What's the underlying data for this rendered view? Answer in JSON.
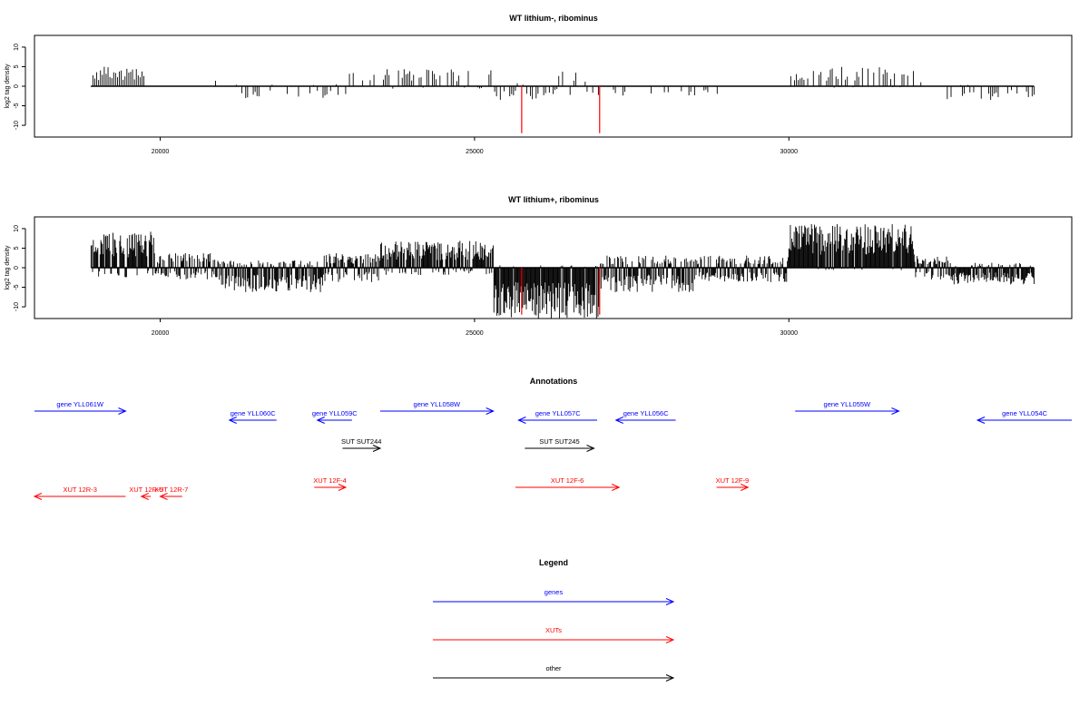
{
  "chart_data": [
    {
      "type": "bar",
      "title": "WT lithium-, ribominus",
      "ylabel": "log2 tag density",
      "xlim": [
        18000,
        34500
      ],
      "ylim": [
        -13,
        13
      ],
      "xticks": [
        20000,
        25000,
        30000
      ],
      "yticks": [
        -10,
        -5,
        0,
        5,
        10
      ],
      "bar_color": "#000000",
      "marker_color": "#ff0000",
      "markers_x": [
        25750,
        26990
      ],
      "profile": {
        "x_start": 18900,
        "x_end": 33900,
        "step": 30,
        "segments": [
          {
            "from": 18900,
            "to": 19750,
            "up": 4.2,
            "down": 0.3,
            "coverage": 0.9
          },
          {
            "from": 19750,
            "to": 21000,
            "up": 2.0,
            "down": 0.2,
            "coverage": 0.06
          },
          {
            "from": 21000,
            "to": 23000,
            "up": 0.4,
            "down": 2.5,
            "coverage": 0.35
          },
          {
            "from": 23000,
            "to": 25300,
            "up": 3.5,
            "down": 0.5,
            "coverage": 0.5
          },
          {
            "from": 25300,
            "to": 26200,
            "up": 0.8,
            "down": 2.8,
            "coverage": 0.55
          },
          {
            "from": 26200,
            "to": 26800,
            "up": 3.0,
            "down": 2.0,
            "coverage": 0.45
          },
          {
            "from": 26800,
            "to": 29300,
            "up": 0.3,
            "down": 2.0,
            "coverage": 0.3
          },
          {
            "from": 29300,
            "to": 30000,
            "up": 0.2,
            "down": 0.3,
            "coverage": 0.02
          },
          {
            "from": 30000,
            "to": 32000,
            "up": 4.0,
            "down": 0.3,
            "coverage": 0.6
          },
          {
            "from": 32000,
            "to": 32500,
            "up": 1.0,
            "down": 0.3,
            "coverage": 0.2
          },
          {
            "from": 32500,
            "to": 33900,
            "up": 0.3,
            "down": 2.8,
            "coverage": 0.5
          }
        ]
      }
    },
    {
      "type": "bar",
      "title": "WT lithium+, ribominus",
      "ylabel": "log2 tag density",
      "xlim": [
        18000,
        34500
      ],
      "ylim": [
        -13,
        13
      ],
      "xticks": [
        20000,
        25000,
        30000
      ],
      "yticks": [
        -10,
        -5,
        0,
        5,
        10
      ],
      "bar_color": "#000000",
      "marker_color": "#ff0000",
      "markers_x": [
        25750,
        26990
      ],
      "profile": {
        "x_start": 18900,
        "x_end": 33900,
        "step": 12,
        "segments": [
          {
            "from": 18900,
            "to": 19900,
            "up": 7.5,
            "down": 2.0,
            "coverage": 1.0
          },
          {
            "from": 19900,
            "to": 20900,
            "up": 3.0,
            "down": 2.5,
            "coverage": 0.9
          },
          {
            "from": 20900,
            "to": 22600,
            "up": 1.5,
            "down": 5.0,
            "coverage": 1.0
          },
          {
            "from": 22600,
            "to": 23500,
            "up": 3.0,
            "down": 3.0,
            "coverage": 1.0
          },
          {
            "from": 23500,
            "to": 25300,
            "up": 5.5,
            "down": 1.5,
            "coverage": 1.0
          },
          {
            "from": 25300,
            "to": 27000,
            "up": 0.5,
            "down": 10.5,
            "coverage": 1.0
          },
          {
            "from": 27000,
            "to": 28500,
            "up": 2.5,
            "down": 5.0,
            "coverage": 1.0
          },
          {
            "from": 28500,
            "to": 30000,
            "up": 2.5,
            "down": 3.0,
            "coverage": 1.0
          },
          {
            "from": 30000,
            "to": 32000,
            "up": 9.0,
            "down": 0.5,
            "coverage": 1.0
          },
          {
            "from": 32000,
            "to": 32600,
            "up": 2.5,
            "down": 2.5,
            "coverage": 1.0
          },
          {
            "from": 32600,
            "to": 33900,
            "up": 1.0,
            "down": 3.5,
            "coverage": 1.0
          }
        ]
      }
    }
  ],
  "annotations": {
    "title": "Annotations",
    "xlim": [
      18000,
      34500
    ],
    "features": [
      {
        "label": "gene YLL061W",
        "start": 18000,
        "end": 19450,
        "strand": "+",
        "color": "#0000ff",
        "row": 0
      },
      {
        "label": "gene YLL060C",
        "start": 21100,
        "end": 21850,
        "strand": "-",
        "color": "#0000ff",
        "row": 1
      },
      {
        "label": "gene YLL059C",
        "start": 22500,
        "end": 23050,
        "strand": "-",
        "color": "#0000ff",
        "row": 1
      },
      {
        "label": "gene YLL058W",
        "start": 23500,
        "end": 25300,
        "strand": "+",
        "color": "#0000ff",
        "row": 0
      },
      {
        "label": "gene YLL057C",
        "start": 25700,
        "end": 26950,
        "strand": "-",
        "color": "#0000ff",
        "row": 1
      },
      {
        "label": "gene YLL056C",
        "start": 27250,
        "end": 28200,
        "strand": "-",
        "color": "#0000ff",
        "row": 1
      },
      {
        "label": "gene YLL055W",
        "start": 30100,
        "end": 31750,
        "strand": "+",
        "color": "#0000ff",
        "row": 0
      },
      {
        "label": "gene YLL054C",
        "start": 33000,
        "end": 34500,
        "strand": "-",
        "color": "#0000ff",
        "row": 1
      },
      {
        "label": "SUT SUT244",
        "start": 22900,
        "end": 23500,
        "strand": "+",
        "color": "#000000",
        "row": 2
      },
      {
        "label": "SUT SUT245",
        "start": 25800,
        "end": 26900,
        "strand": "+",
        "color": "#000000",
        "row": 2
      },
      {
        "label": "XUT 12R-3",
        "start": 18000,
        "end": 19450,
        "strand": "-",
        "color": "#ff0000",
        "row": 4
      },
      {
        "label": "XUT 12R-5",
        "start": 19700,
        "end": 19850,
        "strand": "-",
        "color": "#ff0000",
        "row": 4
      },
      {
        "label": "XUT 12R-7",
        "start": 20000,
        "end": 20350,
        "strand": "-",
        "color": "#ff0000",
        "row": 4
      },
      {
        "label": "XUT 12F-4",
        "start": 22450,
        "end": 22950,
        "strand": "+",
        "color": "#ff0000",
        "row": 3
      },
      {
        "label": "XUT 12F-6",
        "start": 25650,
        "end": 27300,
        "strand": "+",
        "color": "#ff0000",
        "row": 3
      },
      {
        "label": "XUT 12F-9",
        "start": 28850,
        "end": 29350,
        "strand": "+",
        "color": "#ff0000",
        "row": 3
      }
    ]
  },
  "legend": {
    "title": "Legend",
    "items": [
      {
        "label": "genes",
        "color": "#0000ff"
      },
      {
        "label": "XUTs",
        "color": "#ff0000"
      },
      {
        "label": "other",
        "color": "#000000"
      }
    ]
  }
}
